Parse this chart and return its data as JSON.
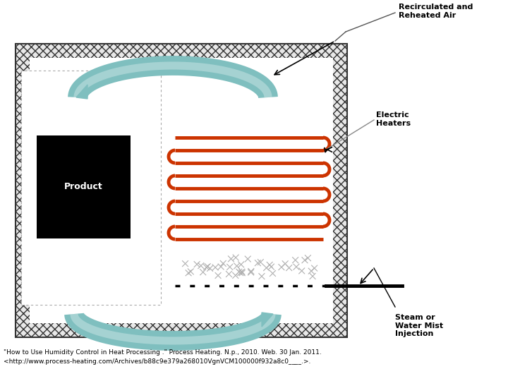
{
  "fig_width": 7.2,
  "fig_height": 5.4,
  "bg_color": "#ffffff",
  "hatch_color": "#333333",
  "heater_color": "#cc3300",
  "arrow_color": "#7fbfbf",
  "label_color": "#000000",
  "label_recirculated": "Recirculated and\nReheated Air",
  "label_electric": "Electric\nHeaters",
  "label_steam": "Steam or\nWater Mist\nInjection",
  "citation_line1": "\"How to Use Humidity Control in Heat Processing .\" Process Heating. N.p., 2010. Web. 30 Jan. 2011.",
  "citation_line2": "<http://www.process-heating.com/Archives/b88c9e379a268010VgnVCM100000f932a8c0____.>.",
  "font_size_labels": 8,
  "font_size_product": 9,
  "font_size_citation": 6.5
}
